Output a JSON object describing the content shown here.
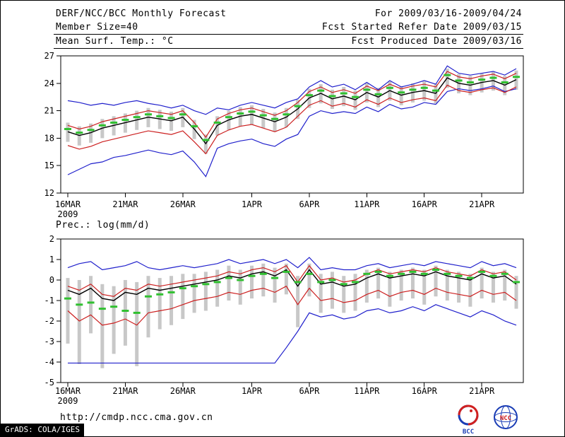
{
  "header": {
    "title": "DERF/NCC/BCC Monthly Forecast",
    "member_size": "Member Size=40",
    "variable_label": "Mean Surf. Temp.: °C",
    "forecast_range": "For 2009/03/16-2009/04/24",
    "refer_date": "Fcst Started Refer Date 2009/03/15",
    "produced_date": "Fcst Produced Date 2009/03/16"
  },
  "footer": {
    "url": "http://cmdp.ncc.cma.gov.cn",
    "grads_credit": "GrADS: COLA/IGES",
    "logos": {
      "bcc": "BCC",
      "ncc": "NCC"
    }
  },
  "chart_data": [
    {
      "type": "line",
      "title": "Mean Surf. Temp.: °C",
      "ylim": [
        12,
        27
      ],
      "yticks": [
        12,
        15,
        18,
        21,
        24,
        27
      ],
      "x_tick_labels": [
        "16MAR",
        "21MAR",
        "26MAR",
        "1APR",
        "6APR",
        "11APR",
        "16APR",
        "21APR"
      ],
      "x_tick_positions": [
        0,
        5,
        10,
        16,
        21,
        26,
        31,
        36
      ],
      "x_sub_label": "2009",
      "grid": false,
      "legend": "none",
      "bars": {
        "name": "quartile-range",
        "color": "#c8c8c8",
        "low": [
          17.6,
          17.2,
          17.5,
          18.0,
          18.3,
          18.6,
          18.9,
          19.2,
          19.0,
          18.8,
          19.2,
          17.9,
          16.3,
          18.3,
          18.9,
          19.3,
          19.5,
          19.1,
          18.7,
          19.2,
          20.1,
          21.3,
          21.8,
          21.2,
          21.5,
          21.1,
          21.9,
          21.4,
          22.1,
          21.6,
          21.9,
          22.1,
          21.8,
          23.5,
          22.9,
          22.7,
          23.0,
          23.2,
          22.7,
          23.3
        ],
        "high": [
          19.7,
          19.3,
          19.6,
          20.1,
          20.4,
          20.7,
          21.0,
          21.3,
          21.1,
          20.9,
          21.3,
          20.0,
          18.4,
          20.4,
          21.0,
          21.4,
          21.6,
          21.2,
          20.8,
          21.3,
          22.2,
          23.4,
          23.9,
          23.3,
          23.6,
          23.2,
          24.0,
          23.5,
          24.2,
          23.7,
          24.0,
          24.2,
          23.9,
          25.6,
          25.0,
          24.8,
          25.1,
          25.3,
          24.8,
          25.4
        ]
      },
      "series": [
        {
          "name": "ensemble-max",
          "color": "#2020cc",
          "values": [
            22.1,
            21.9,
            21.6,
            21.8,
            21.6,
            21.9,
            22.1,
            21.8,
            21.6,
            21.3,
            21.6,
            21.0,
            20.6,
            21.3,
            21.1,
            21.6,
            21.9,
            21.6,
            21.3,
            21.9,
            22.3,
            23.6,
            24.3,
            23.6,
            23.9,
            23.3,
            24.1,
            23.3,
            24.3,
            23.6,
            23.9,
            24.3,
            23.9,
            25.9,
            25.1,
            24.9,
            25.1,
            25.3,
            24.9,
            25.6
          ]
        },
        {
          "name": "ensemble-min",
          "color": "#2020cc",
          "values": [
            14.0,
            14.6,
            15.2,
            15.4,
            15.9,
            16.1,
            16.4,
            16.7,
            16.4,
            16.2,
            16.6,
            15.4,
            13.8,
            16.9,
            17.4,
            17.7,
            17.9,
            17.4,
            17.1,
            17.9,
            18.4,
            20.4,
            21.0,
            20.7,
            20.9,
            20.7,
            21.4,
            20.9,
            21.7,
            21.2,
            21.4,
            21.9,
            21.7,
            23.1,
            23.4,
            23.2,
            23.4,
            23.7,
            23.1,
            23.4
          ]
        },
        {
          "name": "spread-upper",
          "color": "#cc2020",
          "values": [
            19.4,
            19.0,
            19.3,
            19.8,
            20.1,
            20.4,
            20.7,
            21.0,
            20.8,
            20.6,
            21.0,
            19.7,
            18.1,
            20.1,
            20.7,
            21.1,
            21.3,
            20.9,
            20.5,
            21.0,
            21.9,
            23.1,
            23.6,
            23.0,
            23.3,
            22.9,
            23.7,
            23.2,
            23.9,
            23.4,
            23.7,
            23.9,
            23.6,
            25.3,
            24.7,
            24.5,
            24.8,
            25.0,
            24.5,
            25.1
          ]
        },
        {
          "name": "spread-lower",
          "color": "#cc2020",
          "values": [
            17.2,
            16.8,
            17.1,
            17.6,
            17.9,
            18.2,
            18.5,
            18.8,
            18.6,
            18.4,
            18.8,
            17.6,
            16.3,
            18.3,
            18.9,
            19.3,
            19.5,
            19.1,
            18.7,
            19.2,
            20.4,
            21.6,
            22.1,
            21.5,
            21.8,
            21.4,
            22.2,
            21.7,
            22.4,
            21.9,
            22.2,
            22.4,
            22.1,
            23.8,
            23.2,
            23.0,
            23.3,
            23.5,
            23.0,
            23.6
          ]
        },
        {
          "name": "ensemble-mean",
          "color": "#000000",
          "values": [
            18.7,
            18.3,
            18.6,
            19.1,
            19.4,
            19.7,
            20.0,
            20.3,
            20.1,
            19.9,
            20.3,
            19.0,
            17.4,
            19.4,
            20.0,
            20.4,
            20.6,
            20.2,
            19.8,
            20.3,
            21.2,
            22.4,
            22.9,
            22.3,
            22.6,
            22.2,
            23.0,
            22.5,
            23.2,
            22.7,
            23.0,
            23.2,
            22.9,
            24.6,
            24.0,
            23.8,
            24.1,
            24.3,
            23.8,
            24.4
          ]
        },
        {
          "name": "climatology",
          "color": "#30c030",
          "style": "dash",
          "values": [
            19.0,
            18.6,
            18.9,
            19.4,
            19.7,
            20.0,
            20.3,
            20.6,
            20.4,
            20.2,
            20.6,
            19.3,
            17.8,
            19.7,
            20.3,
            20.7,
            20.9,
            20.5,
            20.1,
            20.6,
            21.5,
            22.7,
            23.2,
            22.6,
            22.9,
            22.5,
            23.3,
            22.8,
            23.5,
            23.0,
            23.3,
            23.5,
            23.2,
            24.9,
            24.3,
            24.1,
            24.4,
            24.6,
            24.1,
            24.7
          ]
        }
      ]
    },
    {
      "type": "line",
      "title": "Prec.: log(mm/d)",
      "ylim": [
        -5,
        2
      ],
      "yticks": [
        -5,
        -4,
        -3,
        -2,
        -1,
        0,
        1,
        2
      ],
      "x_tick_labels": [
        "16MAR",
        "21MAR",
        "26MAR",
        "1APR",
        "6APR",
        "11APR",
        "16APR",
        "21APR"
      ],
      "x_tick_positions": [
        0,
        5,
        10,
        16,
        21,
        26,
        31,
        36
      ],
      "x_sub_label": "2009",
      "grid": false,
      "legend": "none",
      "bars": {
        "name": "quartile-range",
        "color": "#c8c8c8",
        "low": [
          -3.1,
          -4.1,
          -2.6,
          -4.3,
          -3.6,
          -3.2,
          -4.2,
          -2.8,
          -2.4,
          -2.2,
          -1.9,
          -1.6,
          -1.5,
          -1.3,
          -1.0,
          -1.2,
          -0.9,
          -0.8,
          -1.1,
          -0.7,
          -2.3,
          -0.8,
          -1.6,
          -1.4,
          -1.6,
          -1.5,
          -1.1,
          -0.9,
          -1.3,
          -1.0,
          -0.9,
          -1.2,
          -0.8,
          -1.0,
          -1.1,
          -1.3,
          -0.9,
          -1.1,
          -1.0,
          -1.4
        ],
        "high": [
          0.1,
          0.0,
          0.2,
          -0.2,
          -0.3,
          0.0,
          -0.1,
          0.2,
          0.1,
          0.2,
          0.3,
          0.3,
          0.4,
          0.5,
          0.7,
          0.5,
          0.7,
          0.8,
          0.6,
          0.8,
          0.2,
          0.8,
          0.3,
          0.4,
          0.2,
          0.3,
          0.5,
          0.6,
          0.4,
          0.5,
          0.6,
          0.5,
          0.7,
          0.5,
          0.4,
          0.3,
          0.6,
          0.4,
          0.5,
          0.2
        ]
      },
      "series": [
        {
          "name": "ensemble-max",
          "color": "#2020cc",
          "values": [
            0.6,
            0.8,
            0.9,
            0.5,
            0.6,
            0.7,
            0.9,
            0.6,
            0.5,
            0.6,
            0.7,
            0.6,
            0.7,
            0.8,
            1.0,
            0.8,
            0.9,
            1.0,
            0.8,
            1.0,
            0.6,
            1.1,
            0.5,
            0.6,
            0.5,
            0.5,
            0.7,
            0.8,
            0.6,
            0.7,
            0.8,
            0.7,
            0.9,
            0.8,
            0.7,
            0.6,
            0.9,
            0.7,
            0.8,
            0.6
          ]
        },
        {
          "name": "ensemble-min",
          "color": "#2020cc",
          "values": [
            -4.05,
            -4.05,
            -4.05,
            -4.05,
            -4.05,
            -4.05,
            -4.05,
            -4.05,
            -4.05,
            -4.05,
            -4.05,
            -4.05,
            -4.05,
            -4.05,
            -4.05,
            -4.05,
            -4.05,
            -4.05,
            -4.05,
            -3.3,
            -2.5,
            -1.6,
            -1.8,
            -1.7,
            -1.9,
            -1.8,
            -1.5,
            -1.4,
            -1.6,
            -1.5,
            -1.3,
            -1.5,
            -1.2,
            -1.4,
            -1.6,
            -1.8,
            -1.5,
            -1.7,
            -2.0,
            -2.2
          ]
        },
        {
          "name": "spread-upper",
          "color": "#cc2020",
          "values": [
            -0.3,
            -0.5,
            -0.2,
            -0.7,
            -0.8,
            -0.4,
            -0.5,
            -0.2,
            -0.3,
            -0.2,
            -0.1,
            0.0,
            0.1,
            0.2,
            0.4,
            0.3,
            0.5,
            0.6,
            0.4,
            0.7,
            -0.1,
            0.7,
            0.0,
            0.1,
            -0.1,
            0.0,
            0.3,
            0.5,
            0.3,
            0.4,
            0.5,
            0.4,
            0.6,
            0.4,
            0.3,
            0.2,
            0.5,
            0.3,
            0.4,
            0.0
          ]
        },
        {
          "name": "spread-lower",
          "color": "#cc2020",
          "values": [
            -1.5,
            -2.0,
            -1.7,
            -2.2,
            -2.1,
            -1.9,
            -2.2,
            -1.6,
            -1.5,
            -1.4,
            -1.2,
            -1.0,
            -0.9,
            -0.8,
            -0.6,
            -0.7,
            -0.5,
            -0.4,
            -0.6,
            -0.3,
            -1.2,
            -0.4,
            -1.0,
            -0.9,
            -1.1,
            -1.0,
            -0.7,
            -0.5,
            -0.8,
            -0.6,
            -0.5,
            -0.7,
            -0.4,
            -0.6,
            -0.7,
            -0.8,
            -0.5,
            -0.7,
            -0.6,
            -1.0
          ]
        },
        {
          "name": "ensemble-mean",
          "color": "#000000",
          "values": [
            -0.5,
            -0.7,
            -0.4,
            -0.9,
            -1.0,
            -0.6,
            -0.7,
            -0.4,
            -0.5,
            -0.4,
            -0.3,
            -0.2,
            -0.1,
            0.0,
            0.2,
            0.1,
            0.3,
            0.4,
            0.2,
            0.5,
            -0.3,
            0.5,
            -0.2,
            -0.1,
            -0.3,
            -0.2,
            0.1,
            0.3,
            0.1,
            0.2,
            0.3,
            0.2,
            0.4,
            0.2,
            0.1,
            0.0,
            0.3,
            0.1,
            0.2,
            -0.2
          ]
        },
        {
          "name": "climatology",
          "color": "#30c030",
          "style": "dash",
          "values": [
            -0.9,
            -1.2,
            -1.1,
            -1.4,
            -1.3,
            -1.5,
            -1.6,
            -0.8,
            -0.7,
            -0.6,
            -0.4,
            -0.3,
            -0.2,
            -0.1,
            0.1,
            0.0,
            0.2,
            0.3,
            0.1,
            0.4,
            -0.1,
            0.3,
            -0.1,
            0.0,
            -0.2,
            -0.1,
            0.3,
            0.4,
            0.2,
            0.3,
            0.4,
            0.3,
            0.5,
            0.3,
            0.2,
            0.1,
            0.4,
            0.2,
            0.3,
            -0.1
          ]
        }
      ]
    }
  ]
}
